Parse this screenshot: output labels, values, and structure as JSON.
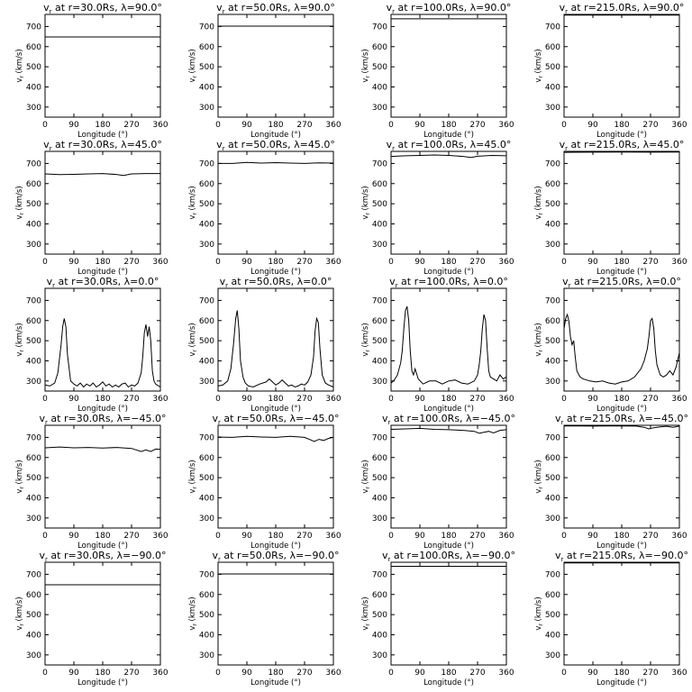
{
  "figure": {
    "xlabel": "Longitude (°)",
    "ylabel": "v_r (km/s)",
    "x_ticks": [
      0,
      90,
      180,
      270,
      360
    ],
    "y_ticks": [
      300,
      400,
      500,
      600,
      700
    ],
    "xlim": [
      0,
      360
    ],
    "ylim": [
      250,
      760
    ]
  },
  "chart_data": [
    {
      "type": "line",
      "title": "v_r at r=30.0Rs, λ=90.0°",
      "radius": "30.0Rs",
      "latitude": "90.0°",
      "xlabel": "Longitude (°)",
      "ylabel": "v_r (km/s)",
      "xlim": [
        0,
        360
      ],
      "ylim": [
        250,
        760
      ],
      "series": [
        {
          "x": [
            0,
            360
          ],
          "y": [
            648,
            648
          ]
        }
      ]
    },
    {
      "type": "line",
      "title": "v_r at r=50.0Rs, λ=90.0°",
      "radius": "50.0Rs",
      "latitude": "90.0°",
      "xlabel": "Longitude (°)",
      "ylabel": "v_r (km/s)",
      "xlim": [
        0,
        360
      ],
      "ylim": [
        250,
        760
      ],
      "series": [
        {
          "x": [
            0,
            360
          ],
          "y": [
            702,
            702
          ]
        }
      ]
    },
    {
      "type": "line",
      "title": "v_r at r=100.0Rs, λ=90.0°",
      "radius": "100.0Rs",
      "latitude": "90.0°",
      "xlabel": "Longitude (°)",
      "ylabel": "v_r (km/s)",
      "xlim": [
        0,
        360
      ],
      "ylim": [
        250,
        760
      ],
      "series": [
        {
          "x": [
            0,
            360
          ],
          "y": [
            738,
            738
          ]
        }
      ]
    },
    {
      "type": "line",
      "title": "v_r at r=215.0Rs, λ=90.0°",
      "radius": "215.0Rs",
      "latitude": "90.0°",
      "xlabel": "Longitude (°)",
      "ylabel": "v_r (km/s)",
      "xlim": [
        0,
        360
      ],
      "ylim": [
        250,
        760
      ],
      "series": [
        {
          "x": [
            0,
            360
          ],
          "y": [
            757,
            757
          ]
        }
      ]
    },
    {
      "type": "line",
      "title": "v_r at r=30.0Rs, λ=45.0°",
      "radius": "30.0Rs",
      "latitude": "45.0°",
      "xlabel": "Longitude (°)",
      "ylabel": "v_r (km/s)",
      "xlim": [
        0,
        360
      ],
      "ylim": [
        250,
        760
      ],
      "series": [
        {
          "x": [
            0,
            45,
            90,
            135,
            180,
            225,
            245,
            270,
            315,
            360
          ],
          "y": [
            648,
            645,
            646,
            648,
            650,
            645,
            640,
            648,
            650,
            650
          ]
        }
      ]
    },
    {
      "type": "line",
      "title": "v_r at r=50.0Rs, λ=45.0°",
      "radius": "50.0Rs",
      "latitude": "45.0°",
      "xlabel": "Longitude (°)",
      "ylabel": "v_r (km/s)",
      "xlim": [
        0,
        360
      ],
      "ylim": [
        250,
        760
      ],
      "series": [
        {
          "x": [
            0,
            45,
            90,
            135,
            180,
            225,
            270,
            315,
            360
          ],
          "y": [
            700,
            700,
            705,
            702,
            704,
            702,
            700,
            703,
            702
          ]
        }
      ]
    },
    {
      "type": "line",
      "title": "v_r at r=100.0Rs, λ=45.0°",
      "radius": "100.0Rs",
      "latitude": "45.0°",
      "xlabel": "Longitude (°)",
      "ylabel": "v_r (km/s)",
      "xlim": [
        0,
        360
      ],
      "ylim": [
        250,
        760
      ],
      "series": [
        {
          "x": [
            0,
            45,
            90,
            135,
            180,
            225,
            250,
            270,
            315,
            360
          ],
          "y": [
            735,
            738,
            740,
            742,
            740,
            735,
            730,
            736,
            740,
            738
          ]
        }
      ]
    },
    {
      "type": "line",
      "title": "v_r at r=215.0Rs, λ=45.0°",
      "radius": "215.0Rs",
      "latitude": "45.0°",
      "xlabel": "Longitude (°)",
      "ylabel": "v_r (km/s)",
      "xlim": [
        0,
        360
      ],
      "ylim": [
        250,
        760
      ],
      "series": [
        {
          "x": [
            0,
            90,
            180,
            270,
            360
          ],
          "y": [
            755,
            756,
            757,
            756,
            757
          ]
        }
      ]
    },
    {
      "type": "line",
      "title": "v_r at r=30.0Rs, λ=0.0°",
      "radius": "30.0Rs",
      "latitude": "0.0°",
      "xlabel": "Longitude (°)",
      "ylabel": "v_r (km/s)",
      "xlim": [
        0,
        360
      ],
      "ylim": [
        250,
        760
      ],
      "series": [
        {
          "x": [
            0,
            15,
            30,
            40,
            50,
            55,
            60,
            65,
            70,
            80,
            90,
            100,
            110,
            120,
            130,
            140,
            150,
            160,
            170,
            180,
            190,
            200,
            210,
            220,
            230,
            240,
            250,
            260,
            270,
            280,
            290,
            300,
            305,
            310,
            315,
            320,
            325,
            330,
            335,
            340,
            345,
            350,
            360
          ],
          "y": [
            280,
            275,
            290,
            340,
            480,
            570,
            610,
            570,
            430,
            300,
            285,
            275,
            290,
            270,
            285,
            275,
            290,
            270,
            280,
            295,
            275,
            285,
            270,
            280,
            270,
            285,
            290,
            270,
            280,
            275,
            290,
            340,
            420,
            540,
            580,
            520,
            570,
            500,
            350,
            300,
            285,
            280,
            270
          ]
        }
      ]
    },
    {
      "type": "line",
      "title": "v_r at r=50.0Rs, λ=0.0°",
      "radius": "50.0Rs",
      "latitude": "0.0°",
      "xlabel": "Longitude (°)",
      "ylabel": "v_r (km/s)",
      "xlim": [
        0,
        360
      ],
      "ylim": [
        250,
        760
      ],
      "series": [
        {
          "x": [
            0,
            15,
            30,
            40,
            48,
            55,
            60,
            65,
            70,
            78,
            85,
            95,
            110,
            130,
            150,
            160,
            170,
            180,
            190,
            200,
            210,
            220,
            230,
            240,
            250,
            260,
            270,
            280,
            290,
            298,
            303,
            308,
            313,
            318,
            325,
            335,
            345,
            360
          ],
          "y": [
            275,
            280,
            300,
            360,
            480,
            610,
            650,
            560,
            400,
            320,
            290,
            275,
            270,
            285,
            295,
            310,
            295,
            280,
            290,
            305,
            290,
            275,
            280,
            270,
            275,
            285,
            280,
            295,
            330,
            420,
            550,
            610,
            590,
            460,
            330,
            290,
            280,
            270
          ]
        }
      ]
    },
    {
      "type": "line",
      "title": "v_r at r=100.0Rs, λ=0.0°",
      "radius": "100.0Rs",
      "latitude": "0.0°",
      "xlabel": "Longitude (°)",
      "ylabel": "v_r (km/s)",
      "xlim": [
        0,
        360
      ],
      "ylim": [
        250,
        760
      ],
      "series": [
        {
          "x": [
            0,
            10,
            20,
            30,
            35,
            40,
            45,
            50,
            55,
            60,
            65,
            70,
            75,
            85,
            100,
            120,
            140,
            160,
            180,
            200,
            220,
            240,
            260,
            270,
            275,
            280,
            285,
            290,
            295,
            300,
            305,
            310,
            320,
            330,
            340,
            350,
            360
          ],
          "y": [
            290,
            305,
            330,
            390,
            450,
            560,
            650,
            670,
            600,
            450,
            350,
            330,
            360,
            310,
            285,
            300,
            300,
            285,
            300,
            305,
            290,
            285,
            300,
            330,
            380,
            450,
            560,
            630,
            600,
            460,
            350,
            320,
            310,
            300,
            330,
            310,
            320
          ]
        }
      ]
    },
    {
      "type": "line",
      "title": "v_r at r=215.0Rs, λ=0.0°",
      "radius": "215.0Rs",
      "latitude": "0.0°",
      "xlabel": "Longitude (°)",
      "ylabel": "v_r (km/s)",
      "xlim": [
        0,
        360
      ],
      "ylim": [
        250,
        760
      ],
      "series": [
        {
          "x": [
            0,
            5,
            10,
            15,
            20,
            25,
            30,
            35,
            40,
            50,
            60,
            70,
            80,
            100,
            120,
            140,
            160,
            180,
            200,
            220,
            240,
            250,
            260,
            265,
            270,
            275,
            280,
            285,
            290,
            300,
            310,
            320,
            330,
            340,
            350,
            360
          ],
          "y": [
            560,
            610,
            630,
            600,
            520,
            480,
            500,
            420,
            350,
            320,
            310,
            305,
            300,
            295,
            300,
            290,
            285,
            295,
            300,
            320,
            360,
            400,
            460,
            520,
            600,
            610,
            560,
            450,
            380,
            330,
            320,
            330,
            350,
            330,
            370,
            440
          ]
        }
      ]
    },
    {
      "type": "line",
      "title": "v_r at r=30.0Rs, λ=−45.0°",
      "radius": "30.0Rs",
      "latitude": "−45.0°",
      "xlabel": "Longitude (°)",
      "ylabel": "v_r (km/s)",
      "xlim": [
        0,
        360
      ],
      "ylim": [
        250,
        760
      ],
      "series": [
        {
          "x": [
            0,
            45,
            90,
            135,
            180,
            225,
            270,
            300,
            315,
            330,
            345,
            360
          ],
          "y": [
            648,
            652,
            648,
            650,
            647,
            650,
            645,
            630,
            638,
            630,
            642,
            640
          ]
        }
      ]
    },
    {
      "type": "line",
      "title": "v_r at r=50.0Rs, λ=−45.0°",
      "radius": "50.0Rs",
      "latitude": "−45.0°",
      "xlabel": "Longitude (°)",
      "ylabel": "v_r (km/s)",
      "xlim": [
        0,
        360
      ],
      "ylim": [
        250,
        760
      ],
      "series": [
        {
          "x": [
            0,
            45,
            90,
            135,
            180,
            225,
            270,
            285,
            300,
            315,
            330,
            345,
            360
          ],
          "y": [
            702,
            700,
            705,
            702,
            700,
            705,
            700,
            690,
            680,
            690,
            685,
            695,
            700
          ]
        }
      ]
    },
    {
      "type": "line",
      "title": "v_r at r=100.0Rs, λ=−45.0°",
      "radius": "100.0Rs",
      "latitude": "−45.0°",
      "xlabel": "Longitude (°)",
      "ylabel": "v_r (km/s)",
      "xlim": [
        0,
        360
      ],
      "ylim": [
        250,
        760
      ],
      "series": [
        {
          "x": [
            0,
            45,
            90,
            135,
            180,
            225,
            260,
            275,
            290,
            305,
            320,
            340,
            360
          ],
          "y": [
            740,
            742,
            745,
            740,
            738,
            735,
            730,
            720,
            725,
            730,
            722,
            735,
            738
          ]
        }
      ]
    },
    {
      "type": "line",
      "title": "v_r at r=215.0Rs, λ=−45.0°",
      "radius": "215.0Rs",
      "latitude": "−45.0°",
      "xlabel": "Longitude (°)",
      "ylabel": "v_r (km/s)",
      "xlim": [
        0,
        360
      ],
      "ylim": [
        250,
        760
      ],
      "series": [
        {
          "x": [
            0,
            45,
            90,
            135,
            180,
            225,
            250,
            265,
            280,
            300,
            320,
            340,
            360
          ],
          "y": [
            757,
            757,
            756,
            757,
            757,
            756,
            750,
            742,
            748,
            752,
            755,
            750,
            756
          ]
        }
      ]
    },
    {
      "type": "line",
      "title": "v_r at r=30.0Rs, λ=−90.0°",
      "radius": "30.0Rs",
      "latitude": "−90.0°",
      "xlabel": "Longitude (°)",
      "ylabel": "v_r (km/s)",
      "xlim": [
        0,
        360
      ],
      "ylim": [
        250,
        760
      ],
      "series": [
        {
          "x": [
            0,
            360
          ],
          "y": [
            648,
            648
          ]
        }
      ]
    },
    {
      "type": "line",
      "title": "v_r at r=50.0Rs, λ=−90.0°",
      "radius": "50.0Rs",
      "latitude": "−90.0°",
      "xlabel": "Longitude (°)",
      "ylabel": "v_r (km/s)",
      "xlim": [
        0,
        360
      ],
      "ylim": [
        250,
        760
      ],
      "series": [
        {
          "x": [
            0,
            360
          ],
          "y": [
            702,
            702
          ]
        }
      ]
    },
    {
      "type": "line",
      "title": "v_r at r=100.0Rs, λ=−90.0°",
      "radius": "100.0Rs",
      "latitude": "−90.0°",
      "xlabel": "Longitude (°)",
      "ylabel": "v_r (km/s)",
      "xlim": [
        0,
        360
      ],
      "ylim": [
        250,
        760
      ],
      "series": [
        {
          "x": [
            0,
            360
          ],
          "y": [
            740,
            740
          ]
        }
      ]
    },
    {
      "type": "line",
      "title": "v_r at r=215.0Rs, λ=−90.0°",
      "radius": "215.0Rs",
      "latitude": "−90.0°",
      "xlabel": "Longitude (°)",
      "ylabel": "v_r (km/s)",
      "xlim": [
        0,
        360
      ],
      "ylim": [
        250,
        760
      ],
      "series": [
        {
          "x": [
            0,
            360
          ],
          "y": [
            757,
            757
          ]
        }
      ]
    }
  ]
}
